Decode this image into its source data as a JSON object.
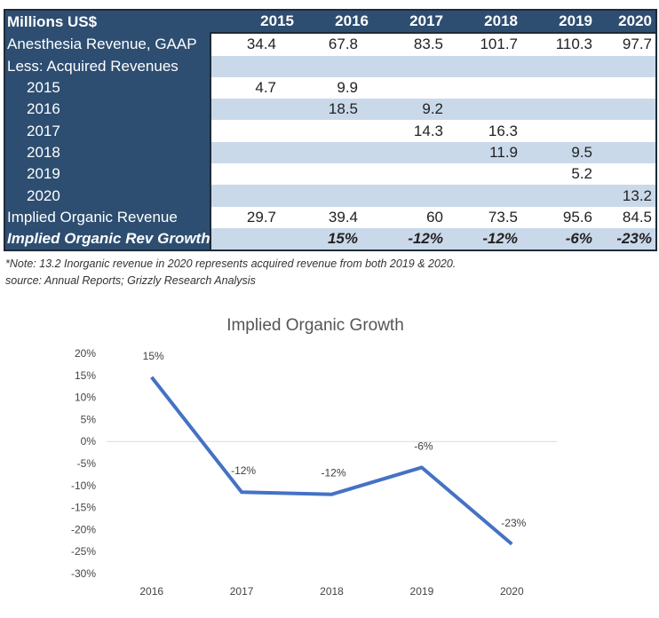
{
  "table": {
    "header_label": "Millions US$",
    "years": [
      "2015",
      "2016",
      "2017",
      "2018",
      "2019",
      "2020"
    ],
    "rows": [
      {
        "label": "Anesthesia Revenue, GAAP",
        "indent": false,
        "style": "plain",
        "values": [
          "34.4",
          "67.8",
          "83.5",
          "101.7",
          "110.3",
          "97.7"
        ]
      },
      {
        "label": "Less: Acquired Revenues",
        "indent": false,
        "style": "shade",
        "values": [
          "",
          "",
          "",
          "",
          "",
          ""
        ]
      },
      {
        "label": "2015",
        "indent": true,
        "style": "plain",
        "values": [
          "4.7",
          "9.9",
          "",
          "",
          "",
          ""
        ]
      },
      {
        "label": "2016",
        "indent": true,
        "style": "shade",
        "values": [
          "",
          "18.5",
          "9.2",
          "",
          "",
          ""
        ]
      },
      {
        "label": "2017",
        "indent": true,
        "style": "plain",
        "values": [
          "",
          "",
          "14.3",
          "16.3",
          "",
          ""
        ]
      },
      {
        "label": "2018",
        "indent": true,
        "style": "shade",
        "values": [
          "",
          "",
          "",
          "11.9",
          "9.5",
          ""
        ]
      },
      {
        "label": "2019",
        "indent": true,
        "style": "plain",
        "values": [
          "",
          "",
          "",
          "",
          "5.2",
          ""
        ]
      },
      {
        "label": "2020",
        "indent": true,
        "style": "shade",
        "values": [
          "",
          "",
          "",
          "",
          "",
          "13.2"
        ]
      },
      {
        "label": "Implied Organic Revenue",
        "indent": false,
        "style": "plain",
        "values": [
          "29.7",
          "39.4",
          "60",
          "73.5",
          "95.6",
          "84.5"
        ]
      },
      {
        "label": "Implied Organic Rev Growth",
        "indent": false,
        "style": "shade growth",
        "values": [
          "",
          "15%",
          "-12%",
          "-12%",
          "-6%",
          "-23%"
        ]
      }
    ]
  },
  "notes": {
    "note": "*Note: 13.2 Inorganic revenue in 2020 represents acquired revenue from both 2019 & 2020.",
    "source": "source: Annual Reports; Grizzly Research Analysis"
  },
  "colors": {
    "header_bg": "#2d4e71",
    "shade_row": "#c9d9ea",
    "line": "#4472c4",
    "zero_line": "#d9d9d9"
  },
  "chart_data": {
    "type": "line",
    "title": "Implied Organic Growth",
    "xlabel": "",
    "ylabel": "",
    "categories": [
      "2016",
      "2017",
      "2018",
      "2019",
      "2020"
    ],
    "series": [
      {
        "name": "Implied Organic Growth",
        "values": [
          14.6,
          -11.5,
          -12.0,
          -5.9,
          -23.3
        ]
      }
    ],
    "data_labels": [
      "15%",
      "-12%",
      "-12%",
      "-6%",
      "-23%"
    ],
    "ylim": [
      -30,
      20
    ],
    "yticks": [
      20,
      15,
      10,
      5,
      0,
      -5,
      -10,
      -15,
      -20,
      -25,
      -30
    ],
    "ytick_labels": [
      "20%",
      "15%",
      "10%",
      "5%",
      "0%",
      "-5%",
      "-10%",
      "-15%",
      "-20%",
      "-25%",
      "-30%"
    ],
    "grid": false,
    "zero_line": true,
    "legend": "none"
  }
}
